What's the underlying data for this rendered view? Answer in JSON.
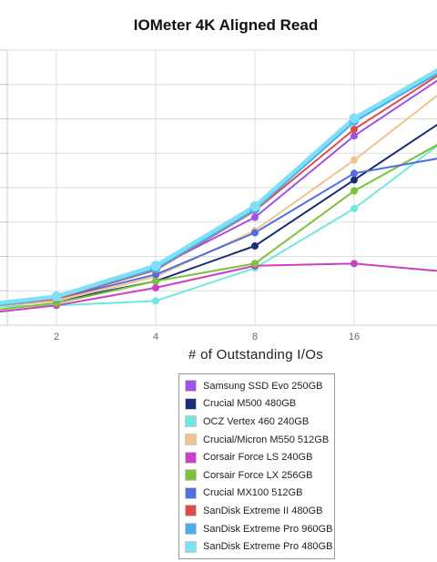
{
  "chart_data": {
    "type": "line",
    "title": "IOMeter 4K Aligned Read",
    "xlabel": "# of Outstanding I/Os",
    "ylabel": "",
    "x": [
      1,
      2,
      4,
      8,
      16,
      32
    ],
    "x_tick_labels": [
      "2",
      "4",
      "8",
      "16"
    ],
    "x_tick_values": [
      2,
      4,
      8,
      16
    ],
    "x_scale": "log2",
    "y_tick_labels": [],
    "grid": true,
    "legend_position": "bottom",
    "series": [
      {
        "name": "Samsung SSD Evo 250GB",
        "color": "#a052e8",
        "values": [
          0.7,
          1.2,
          2.6,
          4.9,
          8.6,
          11.6
        ]
      },
      {
        "name": "Crucial M500 480GB",
        "color": "#1c2d78",
        "values": [
          0.7,
          1.1,
          2.0,
          3.6,
          6.6,
          9.6
        ]
      },
      {
        "name": "OCZ Vertex 460 240GB",
        "color": "#6fe7de",
        "values": [
          0.8,
          0.9,
          1.1,
          2.6,
          5.3,
          8.7
        ]
      },
      {
        "name": "Crucial/Micron M550 512GB",
        "color": "#f0c48c",
        "values": [
          0.7,
          1.1,
          2.2,
          4.3,
          7.5,
          11.0
        ]
      },
      {
        "name": "Corsair Force LS 240GB",
        "color": "#cc40c8",
        "values": [
          0.4,
          0.9,
          1.7,
          2.7,
          2.8,
          2.4
        ]
      },
      {
        "name": "Corsair Force LX 256GB",
        "color": "#7cc23a",
        "values": [
          0.5,
          1.0,
          2.0,
          2.8,
          6.1,
          8.6
        ]
      },
      {
        "name": "Crucial MX100 512GB",
        "color": "#4f6fe0",
        "values": [
          0.7,
          1.2,
          2.3,
          4.2,
          6.9,
          7.7
        ]
      },
      {
        "name": "SanDisk Extreme II 480GB",
        "color": "#e04a4a",
        "values": [
          0.7,
          1.2,
          2.5,
          5.2,
          8.9,
          11.8
        ]
      },
      {
        "name": "SanDisk Extreme Pro 960GB",
        "color": "#4aaee8",
        "values": [
          0.7,
          1.3,
          2.6,
          5.3,
          9.3,
          11.9
        ]
      },
      {
        "name": "SanDisk Extreme Pro 480GB",
        "color": "#7ee0f8",
        "values": [
          0.8,
          1.3,
          2.7,
          5.4,
          9.4,
          12.0
        ]
      }
    ]
  }
}
